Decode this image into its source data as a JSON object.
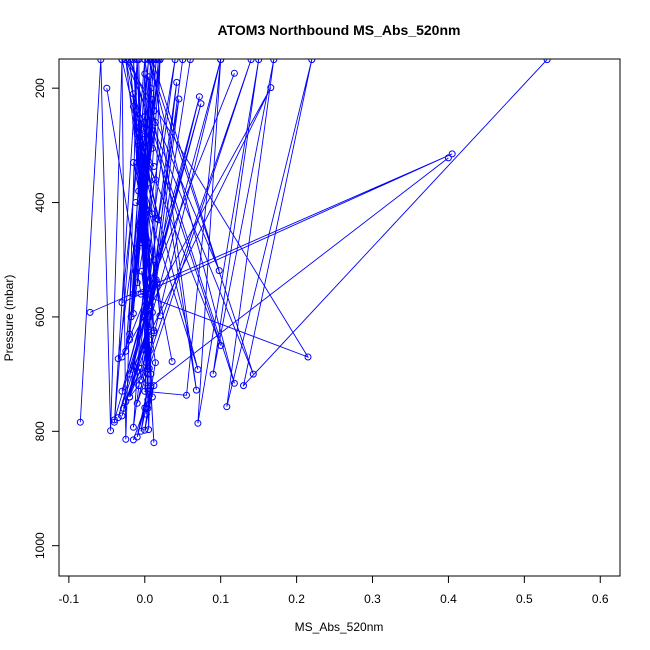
{
  "chart_data": {
    "type": "line",
    "title": "ATOM3 Northbound MS_Abs_520nm",
    "xlabel": "MS_Abs_520nm",
    "ylabel": "Pressure (mbar)",
    "xlim": [
      -0.113,
      0.626
    ],
    "ylim": [
      1053,
      149
    ],
    "y_reversed": true,
    "x_ticks": [
      -0.1,
      0.0,
      0.1,
      0.2,
      0.3,
      0.4,
      0.5,
      0.6
    ],
    "x_tick_labels": [
      "-0.1",
      "0.0",
      "0.1",
      "0.2",
      "0.3",
      "0.4",
      "0.5",
      "0.6"
    ],
    "y_ticks": [
      200,
      400,
      600,
      800,
      1000
    ],
    "y_tick_labels": [
      "200",
      "400",
      "600",
      "800",
      "1000"
    ],
    "grid": false,
    "legend": "none",
    "series_color": "#0000ff",
    "marker": "open-circle",
    "series": [
      {
        "values": [
          [
            -0.085,
            784
          ],
          [
            -0.058,
            150
          ],
          [
            -0.045,
            799
          ],
          [
            -0.03,
            150
          ],
          [
            -0.025,
            814
          ],
          [
            -0.01,
            150
          ],
          [
            -0.04,
            784
          ],
          [
            0.0,
            150
          ],
          [
            0.005,
            797
          ],
          [
            0.02,
            150
          ],
          [
            -0.015,
            793
          ],
          [
            0.05,
            150
          ]
        ]
      },
      {
        "values": [
          [
            -0.072,
            592
          ],
          [
            0.405,
            315
          ],
          [
            -0.03,
            575
          ],
          [
            0.005,
            150
          ],
          [
            -0.025,
            660
          ],
          [
            0.04,
            150
          ],
          [
            -0.02,
            740
          ],
          [
            0.1,
            150
          ],
          [
            -0.01,
            751
          ],
          [
            0.14,
            150
          ],
          [
            -0.005,
            710
          ],
          [
            0.06,
            150
          ]
        ]
      },
      {
        "values": [
          [
            0.4,
            322
          ],
          [
            0.0,
            730
          ],
          [
            0.055,
            737
          ],
          [
            0.1,
            150
          ],
          [
            0.07,
            786
          ],
          [
            0.15,
            150
          ],
          [
            0.09,
            700
          ],
          [
            0.17,
            150
          ],
          [
            0.108,
            757
          ],
          [
            0.22,
            150
          ],
          [
            0.13,
            720
          ],
          [
            0.53,
            150
          ]
        ]
      },
      {
        "values": [
          [
            -0.05,
            200
          ],
          [
            -0.005,
            560
          ],
          [
            0.215,
            670
          ],
          [
            -0.025,
            150
          ],
          [
            0.143,
            700
          ],
          [
            0.005,
            150
          ],
          [
            0.118,
            716
          ],
          [
            -0.02,
            150
          ],
          [
            0.098,
            519
          ],
          [
            0.01,
            150
          ],
          [
            0.068,
            728
          ],
          [
            0.0,
            150
          ]
        ]
      },
      {
        "values": [
          [
            0.118,
            174
          ],
          [
            -0.03,
            670
          ],
          [
            0.166,
            199
          ],
          [
            -0.02,
            700
          ],
          [
            0.074,
            227
          ],
          [
            -0.03,
            730
          ],
          [
            0.072,
            215
          ],
          [
            -0.015,
            686
          ],
          [
            0.045,
            219
          ],
          [
            0.005,
            627
          ],
          [
            0.042,
            190
          ],
          [
            -0.01,
            695
          ]
        ]
      },
      {
        "values": [
          [
            -0.035,
            673
          ],
          [
            0.02,
            150
          ],
          [
            -0.02,
            630
          ],
          [
            0.01,
            150
          ],
          [
            -0.015,
            594
          ],
          [
            0.008,
            150
          ],
          [
            -0.01,
            540
          ],
          [
            0.012,
            150
          ],
          [
            -0.005,
            470
          ],
          [
            0.015,
            150
          ],
          [
            0.0,
            430
          ],
          [
            0.018,
            150
          ]
        ]
      },
      {
        "values": [
          [
            -0.03,
            150
          ],
          [
            0.018,
            430
          ],
          [
            -0.025,
            150
          ],
          [
            0.008,
            532
          ],
          [
            -0.02,
            150
          ],
          [
            0.012,
            628
          ],
          [
            -0.015,
            150
          ],
          [
            0.006,
            690
          ],
          [
            -0.01,
            150
          ],
          [
            0.004,
            745
          ],
          [
            -0.008,
            150
          ],
          [
            0.002,
            770
          ]
        ]
      },
      {
        "values": [
          [
            -0.015,
            232
          ],
          [
            0.012,
            820
          ],
          [
            -0.012,
            260
          ],
          [
            0.01,
            740
          ],
          [
            -0.008,
            300
          ],
          [
            0.008,
            700
          ],
          [
            -0.005,
            340
          ],
          [
            0.006,
            660
          ],
          [
            -0.003,
            280
          ],
          [
            0.004,
            720
          ],
          [
            0.0,
            250
          ],
          [
            0.002,
            680
          ]
        ]
      },
      {
        "values": [
          [
            0.0,
            175
          ],
          [
            -0.02,
            640
          ],
          [
            0.005,
            180
          ],
          [
            -0.018,
            600
          ],
          [
            0.008,
            200
          ],
          [
            -0.015,
            560
          ],
          [
            0.01,
            220
          ],
          [
            -0.012,
            520
          ],
          [
            0.012,
            240
          ],
          [
            -0.01,
            480
          ],
          [
            0.014,
            260
          ],
          [
            -0.008,
            440
          ]
        ]
      },
      {
        "values": [
          [
            -0.01,
            330
          ],
          [
            0.01,
            420
          ],
          [
            -0.008,
            380
          ],
          [
            0.012,
            500
          ],
          [
            -0.006,
            450
          ],
          [
            0.008,
            580
          ],
          [
            -0.004,
            520
          ],
          [
            0.006,
            640
          ],
          [
            -0.002,
            600
          ],
          [
            0.004,
            700
          ],
          [
            0.0,
            650
          ],
          [
            0.002,
            760
          ]
        ]
      },
      {
        "values": [
          [
            0.036,
            678
          ],
          [
            -0.015,
            330
          ],
          [
            0.07,
            692
          ],
          [
            -0.01,
            280
          ],
          [
            0.1,
            650
          ],
          [
            0.0,
            250
          ],
          [
            0.02,
            598
          ],
          [
            -0.005,
            300
          ],
          [
            0.012,
            624
          ],
          [
            0.0,
            350
          ],
          [
            0.016,
            428
          ],
          [
            -0.012,
            400
          ]
        ]
      },
      {
        "values": [
          [
            -0.04,
            780
          ],
          [
            0.015,
            535
          ],
          [
            -0.035,
            776
          ],
          [
            0.01,
            592
          ],
          [
            -0.03,
            773
          ],
          [
            0.005,
            623
          ],
          [
            -0.028,
            760
          ],
          [
            0.0,
            658
          ],
          [
            -0.025,
            748
          ],
          [
            -0.005,
            690
          ],
          [
            -0.02,
            740
          ],
          [
            -0.008,
            720
          ]
        ]
      },
      {
        "values": [
          [
            -0.015,
            815
          ],
          [
            0.0,
            759
          ],
          [
            -0.01,
            810
          ],
          [
            0.004,
            725
          ],
          [
            -0.005,
            800
          ],
          [
            0.008,
            721
          ],
          [
            0.0,
            798
          ],
          [
            0.012,
            720
          ],
          [
            0.004,
            760
          ],
          [
            0.014,
            680
          ],
          [
            0.006,
            600
          ],
          [
            0.016,
            540
          ]
        ]
      },
      {
        "values": [
          [
            -0.015,
            210
          ],
          [
            0.01,
            305
          ],
          [
            -0.012,
            240
          ],
          [
            0.008,
            290
          ],
          [
            -0.01,
            270
          ],
          [
            0.012,
            337
          ],
          [
            -0.006,
            310
          ],
          [
            0.014,
            360
          ],
          [
            -0.002,
            380
          ],
          [
            0.006,
            300
          ],
          [
            0.0,
            420
          ],
          [
            0.004,
            470
          ]
        ]
      }
    ]
  }
}
